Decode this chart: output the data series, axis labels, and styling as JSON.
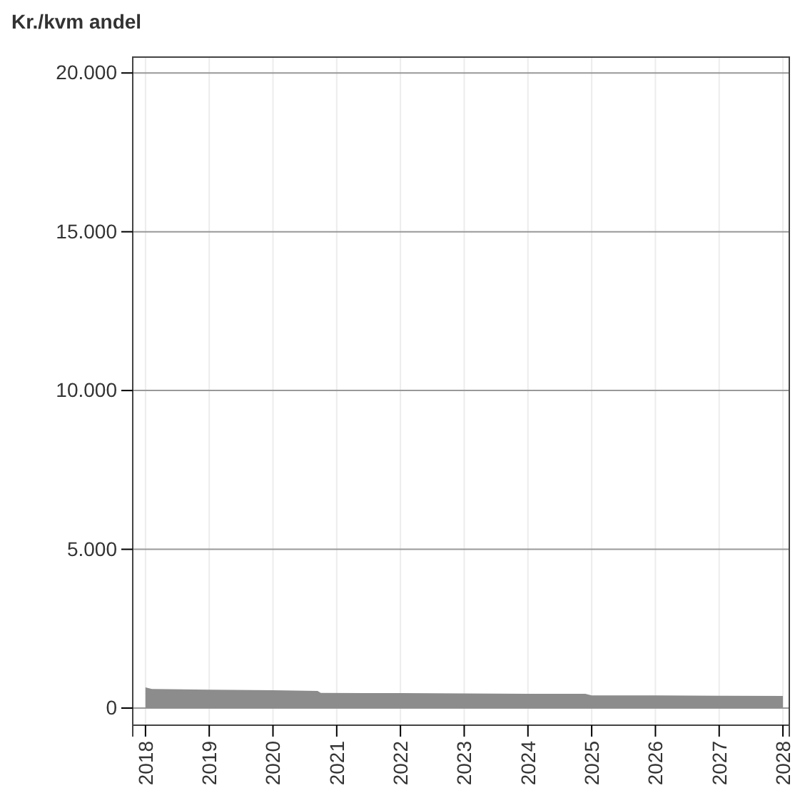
{
  "chart_data": {
    "type": "area",
    "ylabel": "Kr./kvm andel",
    "x": [
      2018,
      2018.1,
      2019,
      2020,
      2020.7,
      2020.75,
      2021.5,
      2022,
      2023,
      2024,
      2024.9,
      2025,
      2026,
      2027,
      2028
    ],
    "series": [
      {
        "color": "#8c8c8c",
        "values": [
          650,
          600,
          580,
          560,
          540,
          480,
          470,
          470,
          460,
          450,
          450,
          400,
          400,
          390,
          380
        ]
      }
    ],
    "xlim": [
      2017.8,
      2028.1
    ],
    "xticks": [
      2018,
      2019,
      2020,
      2021,
      2022,
      2023,
      2024,
      2025,
      2026,
      2027,
      2028
    ],
    "ylim": [
      0,
      20500
    ],
    "yticks": [
      {
        "value": 0,
        "label": "0"
      },
      {
        "value": 5000,
        "label": "5.000"
      },
      {
        "value": 10000,
        "label": "10.000"
      },
      {
        "value": 15000,
        "label": "15.000"
      },
      {
        "value": 20000,
        "label": "20.000"
      }
    ],
    "grid": true
  }
}
